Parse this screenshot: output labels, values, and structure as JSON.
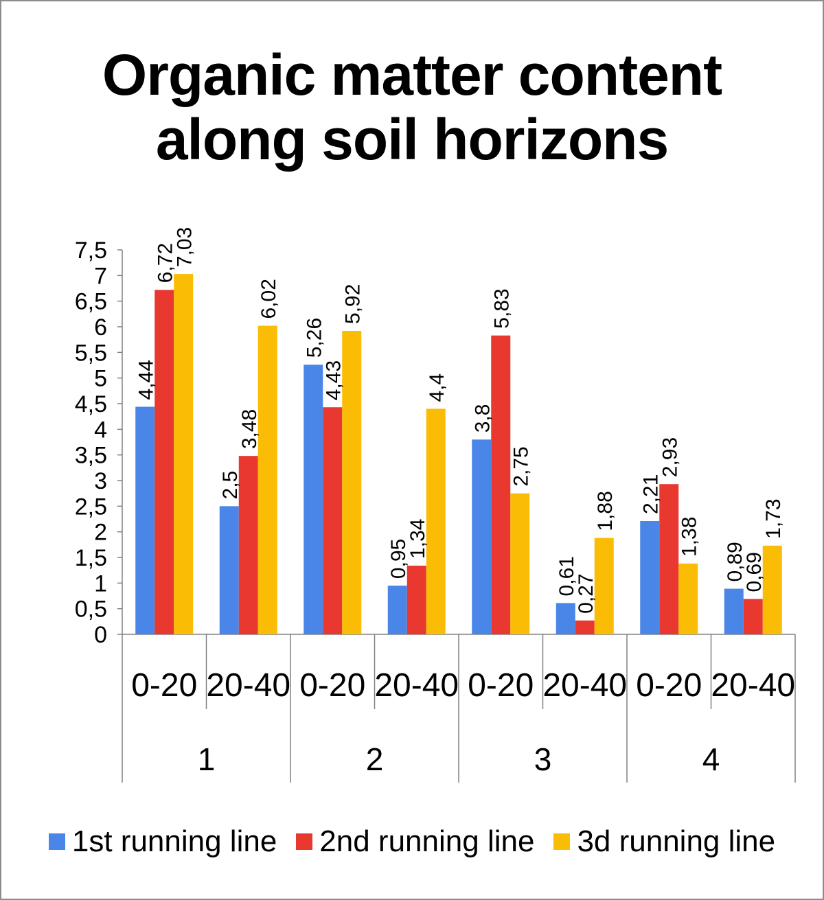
{
  "chart_data": {
    "type": "bar",
    "title": [
      "Organic matter content",
      "along soil horizons"
    ],
    "xlabel": "",
    "ylabel": "",
    "ylim": [
      0,
      7.5
    ],
    "yticks": [
      "0",
      "0,5",
      "1",
      "1,5",
      "2",
      "2,5",
      "3",
      "3,5",
      "4",
      "4,5",
      "5",
      "5,5",
      "6",
      "6,5",
      "7",
      "7,5"
    ],
    "grid": false,
    "legend_position": "bottom",
    "groups": [
      {
        "label": "1",
        "categories": [
          "0-20",
          "20-40"
        ]
      },
      {
        "label": "2",
        "categories": [
          "0-20",
          "20-40"
        ]
      },
      {
        "label": "3",
        "categories": [
          "0-20",
          "20-40"
        ]
      },
      {
        "label": "4",
        "categories": [
          "0-20",
          "20-40"
        ]
      }
    ],
    "categories": [
      "0-20",
      "20-40",
      "0-20",
      "20-40",
      "0-20",
      "20-40",
      "0-20",
      "20-40"
    ],
    "series": [
      {
        "name": "1st running line",
        "color": "#4A86E8",
        "values": [
          4.44,
          2.5,
          5.26,
          0.95,
          3.8,
          0.61,
          2.21,
          0.89
        ],
        "labels": [
          "4,44",
          "2,5",
          "5,26",
          "0,95",
          "3,8",
          "0,61",
          "2,21",
          "0,89"
        ]
      },
      {
        "name": "2nd running line",
        "color": "#E8382F",
        "values": [
          6.72,
          3.48,
          4.43,
          1.34,
          5.83,
          0.27,
          2.93,
          0.69
        ],
        "labels": [
          "6,72",
          "3,48",
          "4,43",
          "1,34",
          "5,83",
          "0,27",
          "2,93",
          "0,69"
        ]
      },
      {
        "name": "3d running line",
        "color": "#FBBC05",
        "values": [
          7.03,
          6.02,
          5.92,
          4.4,
          2.75,
          1.88,
          1.38,
          1.73
        ],
        "labels": [
          "7,03",
          "6,02",
          "5,92",
          "4,4",
          "2,75",
          "1,88",
          "1,38",
          "1,73"
        ]
      }
    ]
  }
}
